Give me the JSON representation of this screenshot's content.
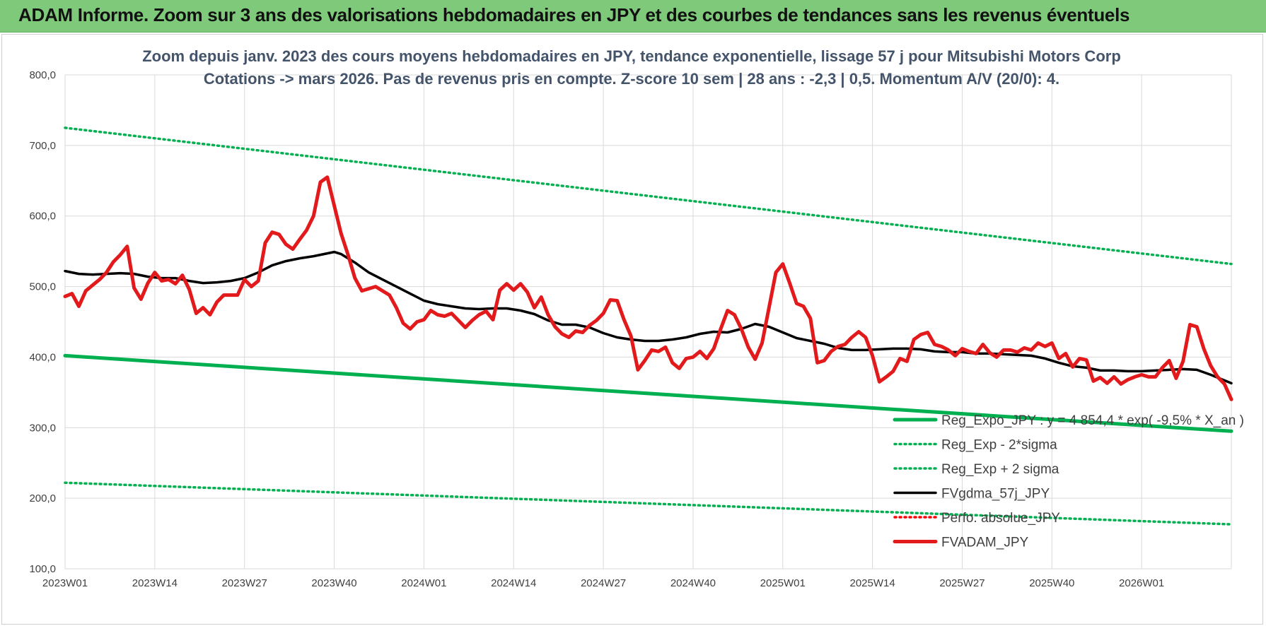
{
  "banner": {
    "title": "ADAM Informe. Zoom sur 3 ans des valorisations hebdomadaires en JPY et des courbes de tendances sans les revenus éventuels",
    "color": "#7fc97a"
  },
  "chart_data": {
    "type": "line",
    "title_line1": "Zoom depuis janv. 2023 des cours moyens hebdomadaires en JPY, tendance exponentielle, lissage 57 j pour Mitsubishi Motors Corp",
    "title_line2": "Cotations -> mars 2026. Pas de revenus pris en compte. Z-score 10 sem | 28 ans : -2,3 | 0,5. Momentum A/V (20/0): 4.",
    "ylim": [
      100,
      800
    ],
    "y_ticks": [
      "100,0",
      "200,0",
      "300,0",
      "400,0",
      "500,0",
      "600,0",
      "700,0",
      "800,0"
    ],
    "x_range": [
      0,
      169
    ],
    "x_ticks": [
      {
        "index": 0,
        "label": "2023W01"
      },
      {
        "index": 13,
        "label": "2023W14"
      },
      {
        "index": 26,
        "label": "2023W27"
      },
      {
        "index": 39,
        "label": "2023W40"
      },
      {
        "index": 52,
        "label": "2024W01"
      },
      {
        "index": 65,
        "label": "2024W14"
      },
      {
        "index": 78,
        "label": "2024W27"
      },
      {
        "index": 91,
        "label": "2024W40"
      },
      {
        "index": 104,
        "label": "2025W01"
      },
      {
        "index": 117,
        "label": "2025W14"
      },
      {
        "index": 130,
        "label": "2025W27"
      },
      {
        "index": 143,
        "label": "2025W40"
      },
      {
        "index": 156,
        "label": "2026W01"
      }
    ],
    "grid": "horizontal and vertical",
    "legend_position": "bottom-right, overlapping plot",
    "series": [
      {
        "name": "Reg_Expo_JPY : y = 4 854,4 * exp( -9,5% * X_an )",
        "style": "solid-thick",
        "color": "#00b050",
        "x": [
          0,
          169
        ],
        "y": [
          402,
          295
        ]
      },
      {
        "name": "Reg_Exp - 2*sigma",
        "style": "dotted",
        "color": "#00b050",
        "x": [
          0,
          169
        ],
        "y": [
          222,
          163
        ]
      },
      {
        "name": "Reg_Exp + 2 sigma",
        "style": "dotted",
        "color": "#00b050",
        "x": [
          0,
          169
        ],
        "y": [
          725,
          532
        ]
      },
      {
        "name": "FVgdma_57j_JPY",
        "style": "solid",
        "color": "#000000",
        "x": [
          0,
          2,
          4,
          6,
          8,
          10,
          12,
          14,
          16,
          18,
          20,
          22,
          24,
          26,
          28,
          30,
          32,
          34,
          36,
          38,
          39,
          40,
          42,
          44,
          46,
          48,
          50,
          52,
          54,
          56,
          58,
          60,
          62,
          64,
          66,
          68,
          70,
          72,
          74,
          76,
          78,
          80,
          82,
          84,
          86,
          88,
          90,
          92,
          94,
          96,
          98,
          100,
          102,
          104,
          106,
          108,
          110,
          112,
          114,
          116,
          118,
          120,
          122,
          124,
          126,
          128,
          130,
          132,
          134,
          136,
          138,
          140,
          142,
          144,
          146,
          148,
          150,
          152,
          154,
          156,
          158,
          160,
          162,
          164,
          166,
          169
        ],
        "y": [
          522,
          518,
          517,
          518,
          519,
          518,
          514,
          512,
          512,
          508,
          505,
          506,
          508,
          512,
          520,
          530,
          536,
          540,
          543,
          547,
          549,
          546,
          534,
          520,
          510,
          500,
          490,
          480,
          475,
          472,
          469,
          468,
          469,
          469,
          466,
          461,
          452,
          446,
          446,
          442,
          434,
          428,
          425,
          423,
          423,
          425,
          428,
          433,
          436,
          435,
          440,
          447,
          443,
          435,
          427,
          423,
          419,
          413,
          410,
          410,
          411,
          412,
          412,
          411,
          408,
          407,
          407,
          405,
          405,
          404,
          403,
          402,
          398,
          392,
          387,
          385,
          381,
          381,
          380,
          380,
          381,
          382,
          383,
          382,
          375,
          363
        ]
      },
      {
        "name": "Perfo. absolue_JPY",
        "style": "dotted",
        "color": "#ff0000",
        "x": [],
        "y": []
      },
      {
        "name": "FVADAM_JPY",
        "style": "solid-thick",
        "color": "#e31a1c",
        "x": [
          0,
          1,
          2,
          3,
          4,
          5,
          6,
          7,
          8,
          9,
          10,
          11,
          12,
          13,
          14,
          15,
          16,
          17,
          18,
          19,
          20,
          21,
          22,
          23,
          24,
          25,
          26,
          27,
          28,
          29,
          30,
          31,
          32,
          33,
          34,
          35,
          36,
          37,
          38,
          39,
          40,
          41,
          42,
          43,
          44,
          45,
          46,
          47,
          48,
          49,
          50,
          51,
          52,
          53,
          54,
          55,
          56,
          57,
          58,
          59,
          60,
          61,
          62,
          63,
          64,
          65,
          66,
          67,
          68,
          69,
          70,
          71,
          72,
          73,
          74,
          75,
          76,
          77,
          78,
          79,
          80,
          81,
          82,
          83,
          84,
          85,
          86,
          87,
          88,
          89,
          90,
          91,
          92,
          93,
          94,
          95,
          96,
          97,
          98,
          99,
          100,
          101,
          102,
          103,
          104,
          105,
          106,
          107,
          108,
          109,
          110,
          111,
          112,
          113,
          114,
          115,
          116,
          117,
          118,
          119,
          120,
          121,
          122,
          123,
          124,
          125,
          126,
          127,
          128,
          129,
          130,
          131,
          132,
          133,
          134,
          135,
          136,
          137,
          138,
          139,
          140,
          141,
          142,
          143,
          144,
          145,
          146,
          147,
          148,
          149,
          150,
          151,
          152,
          153,
          154,
          155,
          156,
          157,
          158,
          159,
          160,
          161,
          162,
          163,
          164,
          165,
          166,
          167,
          168,
          169
        ],
        "y": [
          486,
          490,
          472,
          494,
          502,
          510,
          520,
          535,
          545,
          557,
          498,
          482,
          505,
          520,
          508,
          510,
          504,
          516,
          496,
          462,
          470,
          460,
          478,
          488,
          488,
          488,
          510,
          500,
          508,
          562,
          577,
          574,
          560,
          553,
          567,
          580,
          600,
          648,
          655,
          615,
          575,
          545,
          512,
          494,
          497,
          500,
          494,
          488,
          470,
          448,
          440,
          450,
          453,
          466,
          460,
          458,
          462,
          452,
          442,
          452,
          460,
          465,
          453,
          495,
          504,
          495,
          504,
          492,
          470,
          485,
          460,
          443,
          433,
          428,
          437,
          435,
          445,
          452,
          462,
          481,
          480,
          453,
          430,
          382,
          395,
          410,
          408,
          414,
          392,
          384,
          398,
          400,
          408,
          398,
          412,
          440,
          466,
          460,
          440,
          414,
          397,
          420,
          470,
          520,
          532,
          505,
          476,
          472,
          455,
          392,
          395,
          408,
          415,
          418,
          428,
          436,
          428,
          402,
          365,
          372,
          380,
          398,
          394,
          425,
          432,
          435,
          418,
          415,
          410,
          402,
          412,
          408,
          405,
          418,
          406,
          400,
          410,
          410,
          407,
          413,
          410,
          420,
          415,
          420,
          398,
          405,
          386,
          398,
          396,
          366,
          371,
          363,
          372,
          362,
          368,
          372,
          375,
          372,
          372,
          385,
          395,
          370,
          394,
          446,
          443,
          412,
          388,
          372,
          362,
          340
        ]
      }
    ]
  }
}
